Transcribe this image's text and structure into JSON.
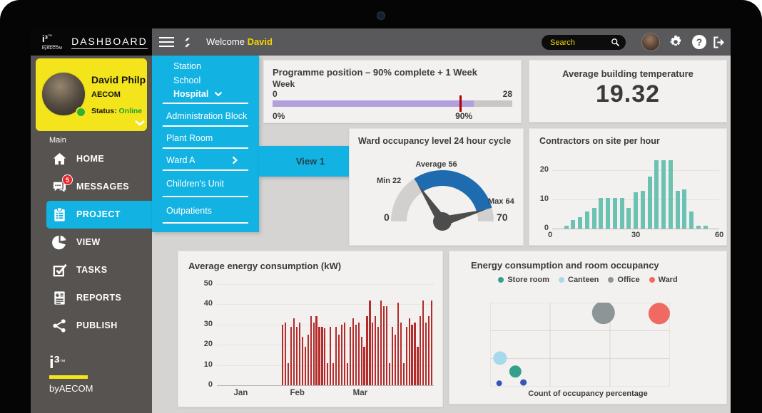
{
  "topbar": {
    "logo": {
      "text": "i³",
      "tm": "™",
      "sub": "byAECOM"
    },
    "title": "DASHBOARD",
    "welcome_prefix": "Welcome ",
    "welcome_name": "David",
    "search": {
      "placeholder": "Search"
    }
  },
  "profile": {
    "name": "David Philp",
    "company": "AECOM",
    "status_label": "Status: ",
    "status_value": "Online",
    "status_color": "#2eb235"
  },
  "sidebar": {
    "section_label": "Main",
    "items": [
      {
        "label": "HOME",
        "icon": "home-icon",
        "active": false
      },
      {
        "label": "MESSAGES",
        "icon": "messages-icon",
        "badge": "5",
        "active": false
      },
      {
        "label": "PROJECT",
        "icon": "clipboard-icon",
        "active": true
      },
      {
        "label": "VIEW",
        "icon": "pie-chart-icon",
        "active": false
      },
      {
        "label": "TASKS",
        "icon": "tasks-check-icon",
        "active": false
      },
      {
        "label": "REPORTS",
        "icon": "report-doc-icon",
        "active": false
      },
      {
        "label": "PUBLISH",
        "icon": "share-icon",
        "active": false
      }
    ],
    "footer": {
      "text": "i³",
      "tm": "™",
      "sub": "byAECOM"
    }
  },
  "nav_menu": {
    "group_items": [
      {
        "label": "Station"
      },
      {
        "label": "School"
      },
      {
        "label": "Hospital"
      }
    ],
    "items": [
      {
        "label": "Administration Block"
      },
      {
        "label": "Plant Room"
      },
      {
        "label": "Ward A",
        "has_submenu": true
      },
      {
        "label": "Children's Unit"
      },
      {
        "label": "Outpatients"
      }
    ],
    "flyout_label": "View 1"
  },
  "chart_data": [
    {
      "type": "progress",
      "title": "Programme position – 90% complete + 1 Week",
      "axis_label": "Week",
      "min_label": "0",
      "max_label": "28",
      "bottom_left_label": "0%",
      "marker_label": "90%",
      "fill_pct": 84,
      "marker_pct": 78,
      "bar_color": "#b2a0dc",
      "track_color": "#c9c7c5",
      "marker_color": "#b00000"
    },
    {
      "type": "kpi",
      "title": "Average building temperature",
      "value": "19.32"
    },
    {
      "type": "gauge",
      "title": "Ward occupancy level 24 hour cycle",
      "range": [
        0,
        70
      ],
      "min": 22,
      "average": 56,
      "max": 64,
      "needle_values": [
        22,
        64
      ],
      "labels": {
        "min": "Min 22",
        "average": "Average 56",
        "max": "Max 64",
        "start": "0",
        "end": "70"
      },
      "band_color": "#1f6bb0",
      "track_color": "#d2d0ce"
    },
    {
      "type": "bar",
      "title": "Contractors on site per hour",
      "x_start": 5,
      "x_step": 2.5,
      "values": [
        1,
        3,
        4,
        6,
        7,
        10.5,
        10.5,
        10.5,
        10.5,
        7,
        12.5,
        13,
        18,
        23.5,
        23.5,
        23.5,
        13,
        13.5,
        6,
        1,
        1
      ],
      "xlim": [
        0,
        60
      ],
      "ylim": [
        0,
        25
      ],
      "x_ticks": [
        "0",
        "30",
        "60"
      ],
      "x_tick_pos": [
        0,
        50,
        100
      ],
      "y_ticks": [
        "0",
        "10",
        "20"
      ],
      "bar_color": "#6cc2b2"
    },
    {
      "type": "bar",
      "title": "Average energy consumption (kW)",
      "values": [
        30,
        31,
        11,
        29,
        33,
        29,
        31,
        24,
        19,
        25,
        34,
        31,
        34,
        29,
        29,
        28,
        11,
        29,
        11,
        29,
        25,
        30,
        31,
        11,
        29,
        33,
        30,
        31,
        24,
        19,
        34,
        42,
        31,
        34,
        29,
        42,
        39,
        39,
        11,
        29,
        25,
        41,
        31,
        11,
        29,
        33,
        30,
        31,
        19,
        34,
        42,
        31,
        34,
        42
      ],
      "ylim": [
        0,
        50
      ],
      "y_ticks": [
        "0",
        "10",
        "20",
        "30",
        "40",
        "50"
      ],
      "x_ticks": [
        "Jan",
        "Feb",
        "Mar"
      ],
      "x_tick_pos": [
        11,
        37,
        66
      ],
      "bars_start_frac": 0.3,
      "bar_color": "#b32b2b"
    },
    {
      "type": "scatter",
      "title": "Energy consumption and room occupancy",
      "xlabel": "Count of occupancy percentage",
      "legend": [
        {
          "name": "Store room",
          "color": "#35a18b"
        },
        {
          "name": "Canteen",
          "color": "#a7d9ec"
        },
        {
          "name": "Office",
          "color": "#8d9597"
        },
        {
          "name": "Ward",
          "color": "#ef6a61"
        }
      ],
      "grid": {
        "cols": 3,
        "rows": 3
      },
      "points": [
        {
          "series": "Office",
          "x": 63,
          "y": 12,
          "r": 16,
          "color": "#8d9597"
        },
        {
          "series": "Ward",
          "x": 94,
          "y": 13,
          "r": 15,
          "color": "#ef6a61"
        },
        {
          "series": "Canteen",
          "x": 5.5,
          "y": 66,
          "r": 9.5,
          "color": "#a7d9ec"
        },
        {
          "series": "Store room",
          "x": 14,
          "y": 82,
          "r": 8.5,
          "color": "#35a18b"
        },
        {
          "series": "unlabeled",
          "x": 5,
          "y": 96,
          "r": 4,
          "color": "#3556b8"
        },
        {
          "series": "unlabeled",
          "x": 18.5,
          "y": 95,
          "r": 4.5,
          "color": "#3556b8"
        }
      ]
    }
  ]
}
